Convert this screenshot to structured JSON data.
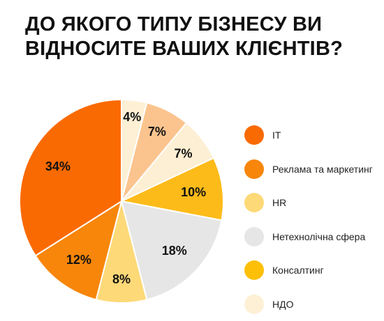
{
  "title": {
    "line1": "ДО ЯКОГО ТИПУ БІЗНЕСУ ВИ",
    "line2": "ВІДНОСИТЕ ВАШИХ КЛІЄНТІВ?"
  },
  "chart_data": {
    "type": "pie",
    "title": "ДО ЯКОГО ТИПУ БІЗНЕСУ ВИ ВІДНОСИТЕ ВАШИХ КЛІЄНТІВ?",
    "slices": [
      {
        "label": "НДО",
        "value": 4,
        "display": "4%",
        "color": "#FDF0D5"
      },
      {
        "label": "",
        "value": 7,
        "display": "7%",
        "color": "#FBC48E"
      },
      {
        "label": "",
        "value": 7,
        "display": "7%",
        "color": "#FCEFD3"
      },
      {
        "label": "Консалтинг",
        "value": 10,
        "display": "10%",
        "color": "#FDBB1A"
      },
      {
        "label": "Нетехнолічна сфера",
        "value": 18,
        "display": "18%",
        "color": "#E6E6E6"
      },
      {
        "label": "HR",
        "value": 8,
        "display": "8%",
        "color": "#FDD978"
      },
      {
        "label": "Реклама та маркетинг",
        "value": 12,
        "display": "12%",
        "color": "#F7860A"
      },
      {
        "label": "IT",
        "value": 34,
        "display": "34%",
        "color": "#FA6A02"
      }
    ],
    "start": "12 o'clock",
    "direction": "clockwise"
  },
  "legend": {
    "placement": "right",
    "items": [
      {
        "label": "IT",
        "color": "#FA6A02"
      },
      {
        "label": "Реклама та маркетинг",
        "color": "#F7860A"
      },
      {
        "label": "HR",
        "color": "#FDD978"
      },
      {
        "label": "Нетехнолічна сфера",
        "color": "#E6E6E6"
      },
      {
        "label": "Консалтинг",
        "color": "#FDBF08"
      },
      {
        "label": "НДО",
        "color": "#FDF0D5"
      }
    ]
  }
}
